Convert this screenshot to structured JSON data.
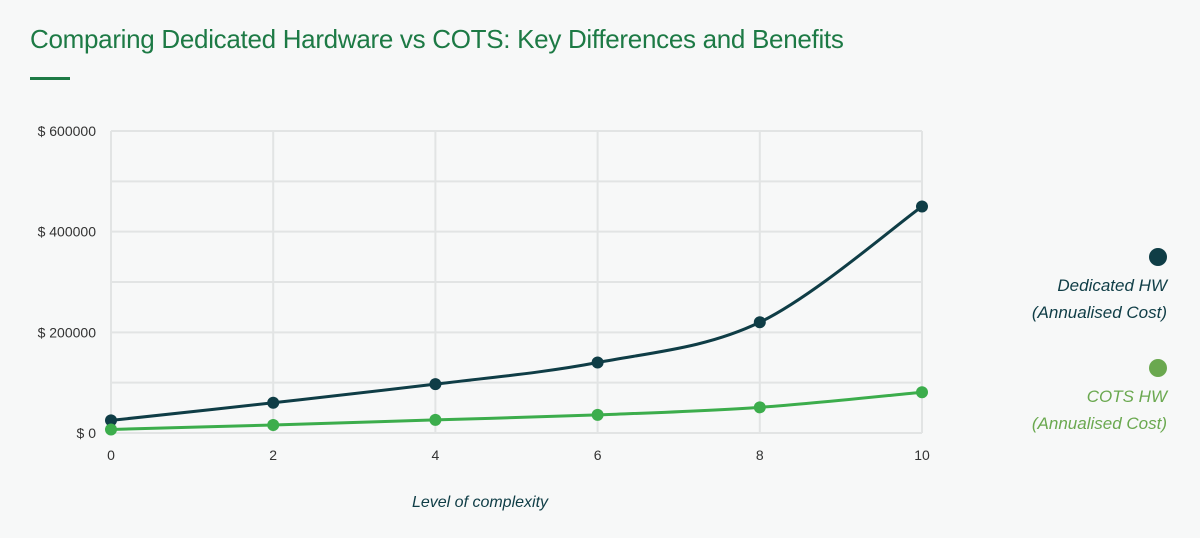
{
  "title": "Comparing Dedicated Hardware vs COTS: Key Differences and Benefits",
  "colors": {
    "title": "#1d7a45",
    "dedicated": "#0f3d46",
    "cots": "#3cad4c",
    "cots_legend": "#6aa84f",
    "grid": "#e2e4e4",
    "axis_text": "#333333"
  },
  "legend": {
    "dedicated": {
      "line1": "Dedicated HW",
      "line2": "(Annualised Cost)"
    },
    "cots": {
      "line1": "COTS HW",
      "line2": "(Annualised Cost)"
    }
  },
  "chart_data": {
    "type": "line",
    "title": "Comparing Dedicated Hardware vs COTS: Key Differences and Benefits",
    "xlabel": "Level of complexity",
    "ylabel": "",
    "x": [
      0,
      2,
      4,
      6,
      8,
      10
    ],
    "xlim": [
      0,
      10
    ],
    "ylim": [
      0,
      600000
    ],
    "x_ticks": [
      "0",
      "2",
      "4",
      "6",
      "8",
      "10"
    ],
    "y_ticks": [
      "$ 0",
      "$ 200000",
      "$ 400000",
      "$ 600000"
    ],
    "grid": true,
    "legend_position": "right",
    "series": [
      {
        "name": "Dedicated HW (Annualised Cost)",
        "values": [
          25000,
          60000,
          97000,
          140000,
          220000,
          450000
        ]
      },
      {
        "name": "COTS HW (Annualised Cost)",
        "values": [
          7000,
          16000,
          26000,
          36000,
          51000,
          81000
        ]
      }
    ]
  }
}
